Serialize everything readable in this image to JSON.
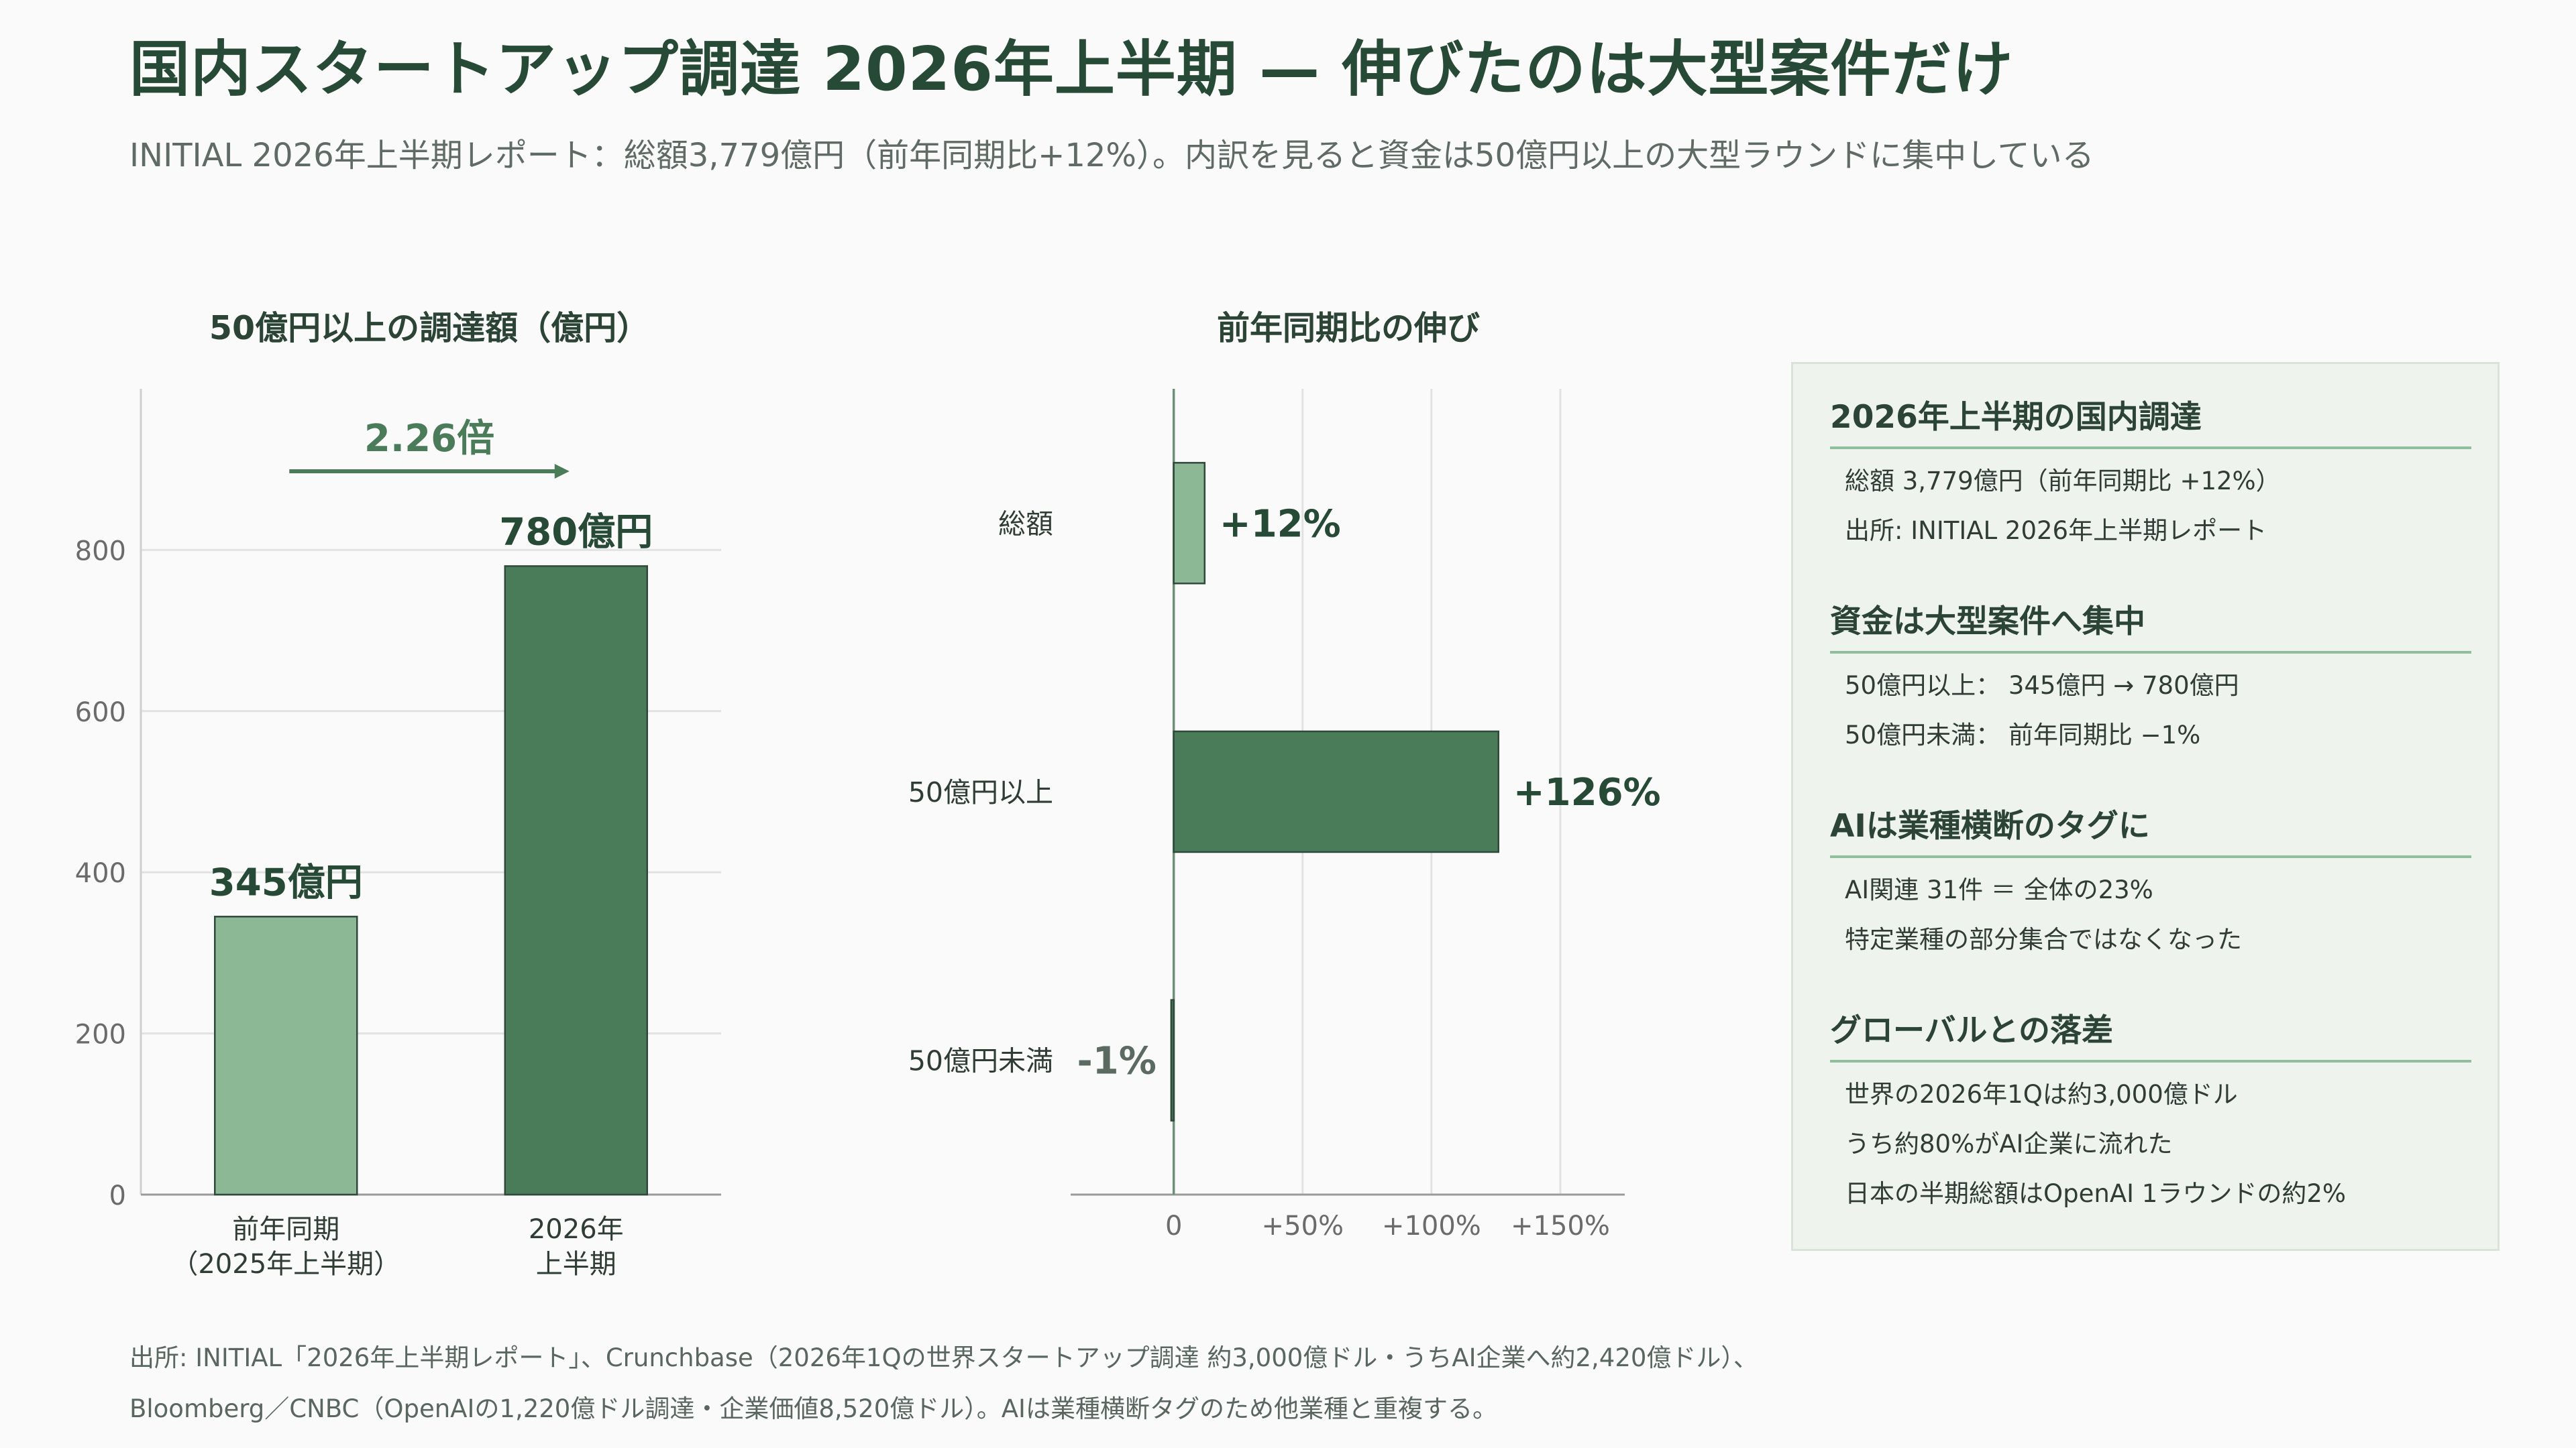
{
  "header": {
    "title": "国内スタートアップ調達 2026年上半期 — 伸びたのは大型案件だけ",
    "subtitle": "INITIAL 2026年上半期レポート：総額3,779億円（前年同期比+12%）。内訳を見ると資金は50億円以上の大型ラウンドに集中している"
  },
  "colors": {
    "dark_green": "#4a7c59",
    "light_green": "#8db896",
    "grid": "#e2e2e2",
    "axis": "#6e8f79",
    "arrow": "#4a7c59"
  },
  "chart_data": [
    {
      "type": "bar",
      "title": "50億円以上の調達額（億円）",
      "categories": [
        [
          "前年同期",
          "（2025年上半期）"
        ],
        [
          "2026年",
          "上半期"
        ]
      ],
      "values": [
        345,
        780
      ],
      "data_labels": [
        "345億円",
        "780億円"
      ],
      "ylim": [
        0,
        1000
      ],
      "yticks": [
        0,
        200,
        400,
        600,
        800
      ],
      "grid": true,
      "annotation": "2.26倍"
    },
    {
      "type": "bar",
      "orientation": "horizontal",
      "title": "前年同期比の伸び",
      "categories": [
        "総額",
        "50億円以上",
        "50億円未満"
      ],
      "values": [
        12,
        126,
        -1
      ],
      "data_labels": [
        "+12%",
        "+126%",
        "-1%"
      ],
      "xlim": [
        -40,
        175
      ],
      "xticks": [
        0,
        50,
        100,
        150
      ],
      "xtick_labels": [
        "0",
        "+50%",
        "+100%",
        "+150%"
      ],
      "grid": true
    }
  ],
  "panel": {
    "sections": [
      {
        "heading": "2026年上半期の国内調達",
        "lines": [
          "総額 3,779億円（前年同期比 +12%）",
          "出所: INITIAL 2026年上半期レポート"
        ]
      },
      {
        "heading": "資金は大型案件へ集中",
        "lines": [
          "50億円以上： 345億円 → 780億円",
          "50億円未満： 前年同期比 −1%"
        ]
      },
      {
        "heading": "AIは業種横断のタグに",
        "lines": [
          "AI関連 31件 ＝ 全体の23%",
          "特定業種の部分集合ではなくなった"
        ]
      },
      {
        "heading": "グローバルとの落差",
        "lines": [
          "世界の2026年1Qは約3,000億ドル",
          "うち約80%がAI企業に流れた",
          "日本の半期総額はOpenAI 1ラウンドの約2%"
        ]
      }
    ]
  },
  "footer": {
    "line1": "出所: INITIAL「2026年上半期レポート」、Crunchbase（2026年1Qの世界スタートアップ調達 約3,000億ドル・うちAI企業へ約2,420億ドル）、",
    "line2": "Bloomberg／CNBC（OpenAIの1,220億ドル調達・企業価値8,520億ドル）。AIは業種横断タグのため他業種と重複する。"
  }
}
